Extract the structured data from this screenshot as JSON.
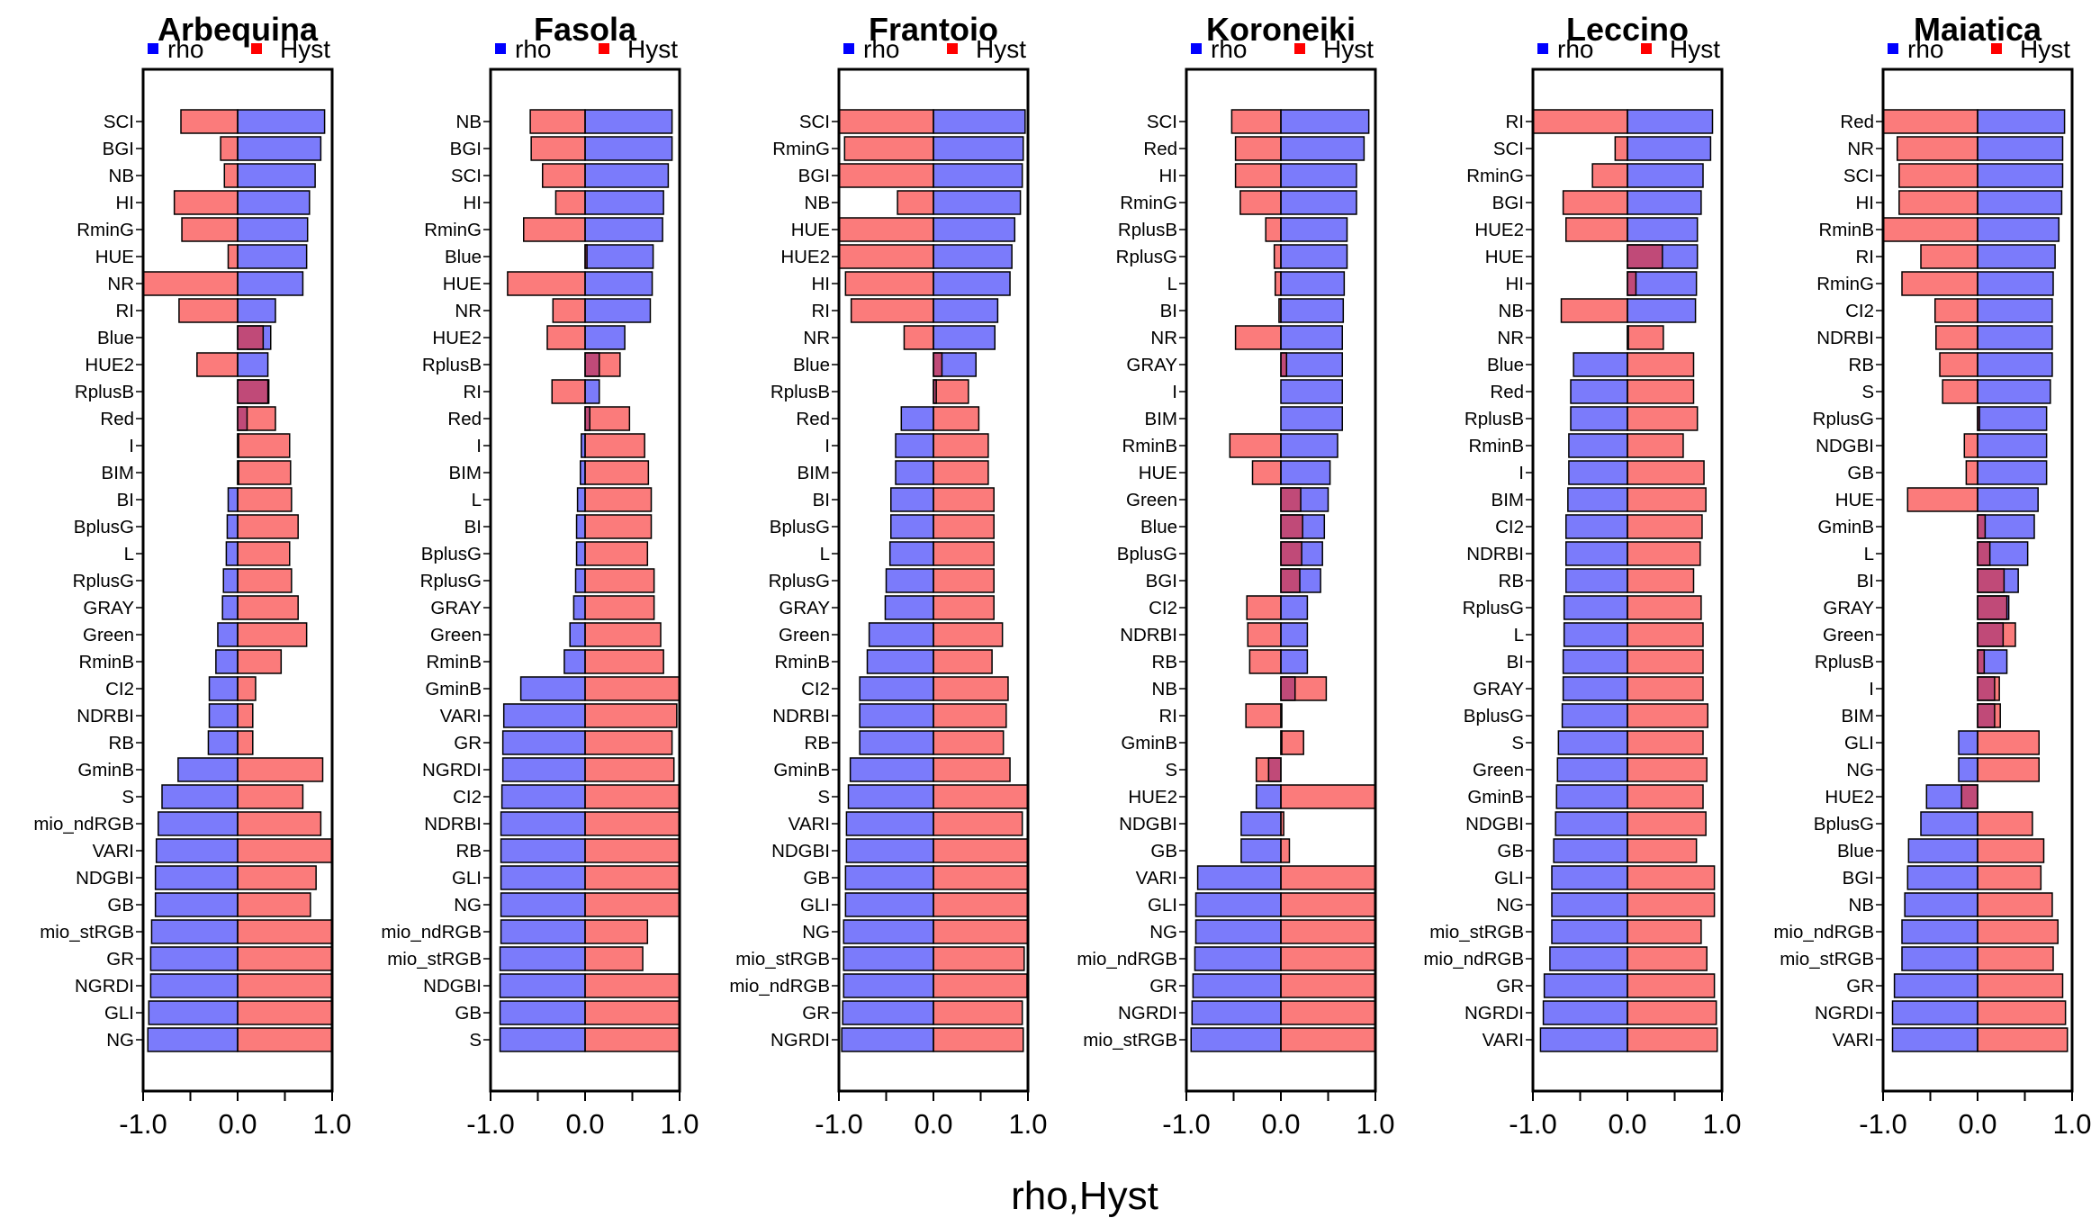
{
  "chart_data": {
    "type": "bar",
    "orientation": "horizontal",
    "xlabel": "rho,Hyst",
    "xlim": [
      -1.0,
      1.0
    ],
    "xticks": [
      "-1.0",
      "0.0",
      "1.0"
    ],
    "legend": [
      {
        "name": "rho",
        "color": "#0000ff"
      },
      {
        "name": "Hyst",
        "color": "#ff0000"
      }
    ],
    "colors": {
      "rho": "#7b7bfb",
      "hyst": "#fb7b7b",
      "overlap": "#c04a78"
    },
    "panels": [
      {
        "title": "Arbequina",
        "categories": [
          "SCI",
          "BGI",
          "NB",
          "HI",
          "RminG",
          "HUE",
          "NR",
          "RI",
          "Blue",
          "HUE2",
          "RplusB",
          "Red",
          "I",
          "BIM",
          "BI",
          "BplusG",
          "L",
          "RplusG",
          "GRAY",
          "Green",
          "RminB",
          "CI2",
          "NDRBI",
          "RB",
          "GminB",
          "S",
          "mio_ndRGB",
          "VARI",
          "NDGBI",
          "GB",
          "mio_stRGB",
          "GR",
          "NGRDI",
          "GLI",
          "NG"
        ],
        "rho": [
          0.92,
          0.88,
          0.82,
          0.76,
          0.74,
          0.73,
          0.69,
          0.4,
          0.35,
          0.32,
          0.32,
          0.1,
          0.01,
          0.01,
          -0.1,
          -0.11,
          -0.12,
          -0.15,
          -0.16,
          -0.21,
          -0.23,
          -0.3,
          -0.3,
          -0.31,
          -0.63,
          -0.8,
          -0.84,
          -0.86,
          -0.87,
          -0.87,
          -0.91,
          -0.92,
          -0.92,
          -0.94,
          -0.95
        ],
        "hyst": [
          -0.6,
          -0.18,
          -0.14,
          -0.67,
          -0.59,
          -0.1,
          -1.0,
          -0.62,
          0.27,
          -0.43,
          0.33,
          0.4,
          0.55,
          0.56,
          0.57,
          0.64,
          0.55,
          0.57,
          0.64,
          0.73,
          0.46,
          0.19,
          0.16,
          0.16,
          0.9,
          0.69,
          0.88,
          1.0,
          0.83,
          0.77,
          1.0,
          1.0,
          1.0,
          1.0,
          1.0
        ]
      },
      {
        "title": "Fasola",
        "categories": [
          "NB",
          "BGI",
          "SCI",
          "HI",
          "RminG",
          "Blue",
          "HUE",
          "NR",
          "HUE2",
          "RplusB",
          "RI",
          "Red",
          "I",
          "BIM",
          "L",
          "BI",
          "BplusG",
          "RplusG",
          "GRAY",
          "Green",
          "RminB",
          "GminB",
          "VARI",
          "GR",
          "NGRDI",
          "CI2",
          "NDRBI",
          "RB",
          "GLI",
          "NG",
          "mio_ndRGB",
          "mio_stRGB",
          "NDGBI",
          "GB",
          "S"
        ],
        "rho": [
          0.92,
          0.92,
          0.88,
          0.83,
          0.82,
          0.72,
          0.71,
          0.69,
          0.42,
          0.15,
          0.15,
          0.05,
          -0.04,
          -0.05,
          -0.08,
          -0.09,
          -0.09,
          -0.1,
          -0.12,
          -0.16,
          -0.22,
          -0.68,
          -0.86,
          -0.87,
          -0.87,
          -0.88,
          -0.89,
          -0.89,
          -0.89,
          -0.89,
          -0.89,
          -0.9,
          -0.9,
          -0.9,
          -0.9
        ],
        "hyst": [
          -0.58,
          -0.57,
          -0.45,
          -0.31,
          -0.65,
          0.02,
          -0.82,
          -0.34,
          -0.4,
          0.37,
          -0.35,
          0.47,
          0.63,
          0.67,
          0.7,
          0.7,
          0.66,
          0.73,
          0.73,
          0.8,
          0.83,
          1.0,
          0.97,
          0.92,
          0.94,
          1.0,
          1.0,
          1.0,
          1.0,
          1.0,
          0.66,
          0.61,
          1.0,
          1.0,
          1.0
        ]
      },
      {
        "title": "Frantoio",
        "categories": [
          "SCI",
          "RminG",
          "BGI",
          "NB",
          "HUE",
          "HUE2",
          "HI",
          "RI",
          "NR",
          "Blue",
          "RplusB",
          "Red",
          "I",
          "BIM",
          "BI",
          "BplusG",
          "L",
          "RplusG",
          "GRAY",
          "Green",
          "RminB",
          "CI2",
          "NDRBI",
          "RB",
          "GminB",
          "S",
          "VARI",
          "NDGBI",
          "GB",
          "GLI",
          "NG",
          "mio_stRGB",
          "mio_ndRGB",
          "GR",
          "NGRDI"
        ],
        "rho": [
          0.97,
          0.95,
          0.94,
          0.92,
          0.86,
          0.83,
          0.81,
          0.68,
          0.65,
          0.45,
          0.03,
          -0.34,
          -0.4,
          -0.4,
          -0.45,
          -0.45,
          -0.46,
          -0.5,
          -0.51,
          -0.68,
          -0.7,
          -0.78,
          -0.78,
          -0.78,
          -0.88,
          -0.9,
          -0.92,
          -0.92,
          -0.93,
          -0.93,
          -0.95,
          -0.95,
          -0.95,
          -0.96,
          -0.97
        ],
        "hyst": [
          -1.0,
          -0.94,
          -1.0,
          -0.38,
          -1.0,
          -1.0,
          -0.93,
          -0.87,
          -0.31,
          0.09,
          0.37,
          0.48,
          0.58,
          0.58,
          0.64,
          0.64,
          0.64,
          0.64,
          0.64,
          0.73,
          0.62,
          0.79,
          0.77,
          0.74,
          0.81,
          1.0,
          0.94,
          1.0,
          1.0,
          1.0,
          1.0,
          0.96,
          0.99,
          0.94,
          0.95
        ]
      },
      {
        "title": "Koroneiki",
        "categories": [
          "SCI",
          "Red",
          "HI",
          "RminG",
          "RplusB",
          "RplusG",
          "L",
          "BI",
          "NR",
          "GRAY",
          "I",
          "BIM",
          "RminB",
          "HUE",
          "Green",
          "Blue",
          "BplusG",
          "BGI",
          "CI2",
          "NDRBI",
          "RB",
          "NB",
          "RI",
          "GminB",
          "S",
          "HUE2",
          "NDGBI",
          "GB",
          "VARI",
          "GLI",
          "NG",
          "mio_ndRGB",
          "GR",
          "NGRDI",
          "mio_stRGB"
        ],
        "rho": [
          0.93,
          0.88,
          0.8,
          0.8,
          0.7,
          0.7,
          0.67,
          0.66,
          0.65,
          0.65,
          0.65,
          0.65,
          0.6,
          0.52,
          0.5,
          0.46,
          0.44,
          0.42,
          0.28,
          0.28,
          0.28,
          0.15,
          0.01,
          0.01,
          -0.13,
          -0.26,
          -0.42,
          -0.42,
          -0.88,
          -0.9,
          -0.9,
          -0.91,
          -0.93,
          -0.94,
          -0.95
        ],
        "hyst": [
          -0.52,
          -0.48,
          -0.48,
          -0.43,
          -0.16,
          -0.07,
          -0.06,
          -0.02,
          -0.48,
          0.06,
          0.0,
          0.0,
          -0.54,
          -0.3,
          0.21,
          0.23,
          0.22,
          0.2,
          -0.36,
          -0.35,
          -0.33,
          0.48,
          -0.37,
          0.24,
          -0.26,
          1.0,
          0.03,
          0.09,
          1.0,
          1.0,
          1.0,
          1.0,
          1.0,
          1.0,
          1.0
        ]
      },
      {
        "title": "Leccino",
        "categories": [
          "RI",
          "SCI",
          "RminG",
          "BGI",
          "HUE2",
          "HUE",
          "HI",
          "NB",
          "NR",
          "Blue",
          "Red",
          "RplusB",
          "RminB",
          "I",
          "BIM",
          "CI2",
          "NDRBI",
          "RB",
          "RplusG",
          "L",
          "BI",
          "GRAY",
          "BplusG",
          "S",
          "Green",
          "GminB",
          "NDGBI",
          "GB",
          "GLI",
          "NG",
          "mio_stRGB",
          "mio_ndRGB",
          "GR",
          "NGRDI",
          "VARI"
        ],
        "rho": [
          0.9,
          0.88,
          0.8,
          0.78,
          0.74,
          0.74,
          0.73,
          0.72,
          0.01,
          -0.57,
          -0.6,
          -0.6,
          -0.62,
          -0.62,
          -0.63,
          -0.65,
          -0.65,
          -0.65,
          -0.67,
          -0.67,
          -0.68,
          -0.68,
          -0.69,
          -0.73,
          -0.74,
          -0.75,
          -0.76,
          -0.78,
          -0.8,
          -0.8,
          -0.8,
          -0.82,
          -0.88,
          -0.89,
          -0.92
        ],
        "hyst": [
          -1.0,
          -0.13,
          -0.37,
          -0.68,
          -0.65,
          0.37,
          0.09,
          -0.7,
          0.38,
          0.7,
          0.7,
          0.74,
          0.59,
          0.81,
          0.83,
          0.79,
          0.77,
          0.7,
          0.78,
          0.8,
          0.8,
          0.8,
          0.85,
          0.8,
          0.84,
          0.8,
          0.83,
          0.73,
          0.92,
          0.92,
          0.78,
          0.84,
          0.92,
          0.94,
          0.95
        ]
      },
      {
        "title": "Maiatica",
        "categories": [
          "Red",
          "NR",
          "SCI",
          "HI",
          "RminB",
          "RI",
          "RminG",
          "CI2",
          "NDRBI",
          "RB",
          "S",
          "RplusG",
          "NDGBI",
          "GB",
          "HUE",
          "GminB",
          "L",
          "BI",
          "GRAY",
          "Green",
          "RplusB",
          "I",
          "BIM",
          "GLI",
          "NG",
          "HUE2",
          "BplusG",
          "Blue",
          "BGI",
          "NB",
          "mio_ndRGB",
          "mio_stRGB",
          "GR",
          "NGRDI",
          "VARI"
        ],
        "rho": [
          0.92,
          0.9,
          0.9,
          0.89,
          0.86,
          0.82,
          0.8,
          0.79,
          0.79,
          0.79,
          0.77,
          0.73,
          0.73,
          0.73,
          0.64,
          0.6,
          0.53,
          0.43,
          0.33,
          0.27,
          0.31,
          0.18,
          0.18,
          -0.2,
          -0.2,
          -0.54,
          -0.6,
          -0.73,
          -0.74,
          -0.77,
          -0.8,
          -0.8,
          -0.88,
          -0.9,
          -0.9
        ],
        "hyst": [
          -1.0,
          -0.85,
          -0.83,
          -0.83,
          -1.0,
          -0.6,
          -0.8,
          -0.45,
          -0.44,
          -0.4,
          -0.37,
          0.02,
          -0.14,
          -0.12,
          -0.74,
          0.08,
          0.13,
          0.28,
          0.31,
          0.4,
          0.07,
          0.23,
          0.24,
          0.65,
          0.65,
          -0.17,
          0.58,
          0.7,
          0.67,
          0.79,
          0.85,
          0.8,
          0.9,
          0.93,
          0.95
        ]
      }
    ]
  }
}
